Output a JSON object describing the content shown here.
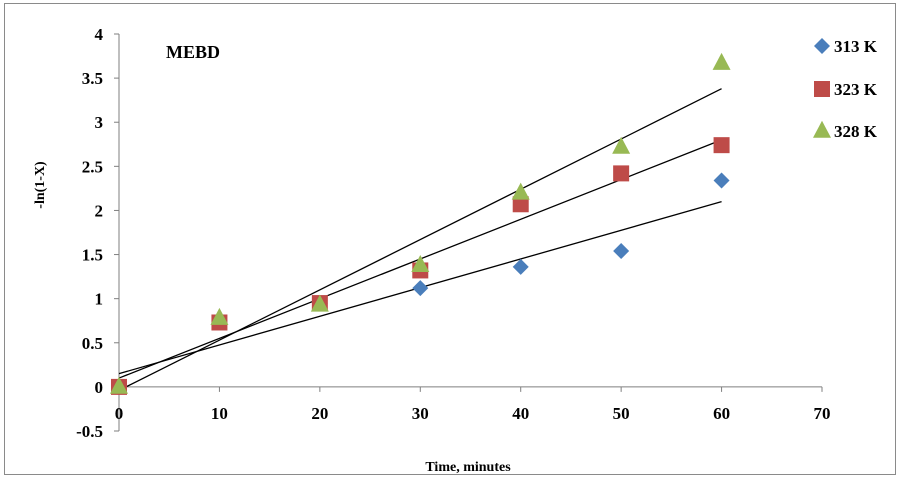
{
  "chart_data": {
    "type": "scatter",
    "title": "",
    "annotation": "MEBD",
    "xlabel": "Time, minutes",
    "ylabel": "-ln(1-X)",
    "xlim": [
      0,
      70
    ],
    "ylim": [
      -0.5,
      4
    ],
    "x_ticks": [
      "0",
      "10",
      "20",
      "30",
      "40",
      "50",
      "60",
      "70"
    ],
    "y_ticks": [
      "-0.5",
      "0",
      "0.5",
      "1",
      "1.5",
      "2",
      "2.5",
      "3",
      "3.5",
      "4"
    ],
    "grid": false,
    "legend_position": "right",
    "series": [
      {
        "name": "313 K",
        "marker": "diamond",
        "color": "#4a7ebb",
        "points": [
          [
            0,
            0.0
          ],
          [
            10,
            0.75
          ],
          [
            20,
            0.95
          ],
          [
            30,
            1.12
          ],
          [
            40,
            1.36
          ],
          [
            50,
            1.54
          ],
          [
            60,
            2.34
          ]
        ],
        "trendline": [
          [
            0,
            0.15
          ],
          [
            60,
            2.1
          ]
        ]
      },
      {
        "name": "323 K",
        "marker": "square",
        "color": "#be4b48",
        "points": [
          [
            0,
            0.0
          ],
          [
            10,
            0.73
          ],
          [
            20,
            0.95
          ],
          [
            30,
            1.32
          ],
          [
            40,
            2.07
          ],
          [
            50,
            2.42
          ],
          [
            60,
            2.74
          ]
        ],
        "trendline": [
          [
            0,
            0.1
          ],
          [
            60,
            2.8
          ]
        ]
      },
      {
        "name": "328 K",
        "marker": "triangle",
        "color": "#98b954",
        "points": [
          [
            0,
            0.0
          ],
          [
            10,
            0.78
          ],
          [
            20,
            0.93
          ],
          [
            30,
            1.38
          ],
          [
            40,
            2.2
          ],
          [
            50,
            2.72
          ],
          [
            60,
            3.67
          ]
        ],
        "trendline": [
          [
            0,
            -0.04
          ],
          [
            60,
            3.38
          ]
        ]
      }
    ]
  }
}
